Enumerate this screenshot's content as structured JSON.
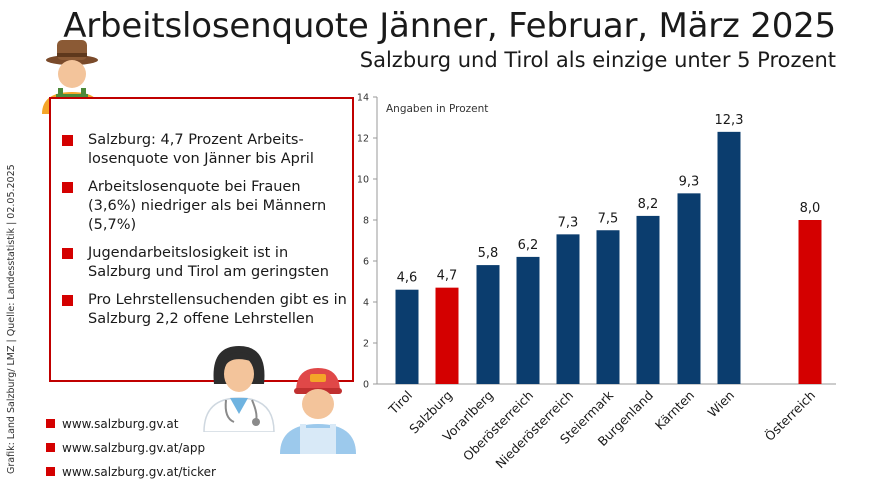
{
  "header": {
    "title": "Arbeitslosenquote Jänner, Februar, März 2025",
    "subtitle": "Salzburg und Tirol als einzige unter 5 Prozent"
  },
  "credit": "Grafik: Land Salzburg/ LMZ | Quelle: Landesstatistik | 02.05.2025",
  "bullets": [
    "Salzburg: 4,7 Prozent Arbeits-losenquote von Jänner bis April",
    "Arbeitslosenquote bei Frauen (3,6%) niedriger als bei Männern (5,7%)",
    "Jugendarbeitslosigkeit ist in Salzburg und Tirol am geringsten",
    "Pro Lehrstellensuchenden gibt es in Salzburg 2,2 offene Lehrstellen"
  ],
  "links": [
    "www.salzburg.gv.at",
    "www.salzburg.gv.at/app",
    "www.salzburg.gv.at/ticker"
  ],
  "colors": {
    "bar_default": "#0b3d6e",
    "bar_highlight": "#d40000",
    "accent": "#c00000"
  },
  "icons": [
    "farmer-icon",
    "doctor-icon",
    "worker-icon"
  ],
  "chart_data": {
    "type": "bar",
    "annotation": "Angaben in Prozent",
    "categories": [
      "Tirol",
      "Salzburg",
      "Vorarlberg",
      "Oberösterreich",
      "Niederösterreich",
      "Steiermark",
      "Burgenland",
      "Kärnten",
      "Wien",
      "Österreich"
    ],
    "values": [
      4.6,
      4.7,
      5.8,
      6.2,
      7.3,
      7.5,
      8.2,
      9.3,
      12.3,
      8.0
    ],
    "value_labels": [
      "4,6",
      "4,7",
      "5,8",
      "6,2",
      "7,3",
      "7,5",
      "8,2",
      "9,3",
      "12,3",
      "8,0"
    ],
    "highlighted": [
      "Salzburg",
      "Österreich"
    ],
    "ylim": [
      0,
      14
    ],
    "yticks": [
      0,
      2,
      4,
      6,
      8,
      10,
      12,
      14
    ],
    "grid": false,
    "legend": "none"
  }
}
